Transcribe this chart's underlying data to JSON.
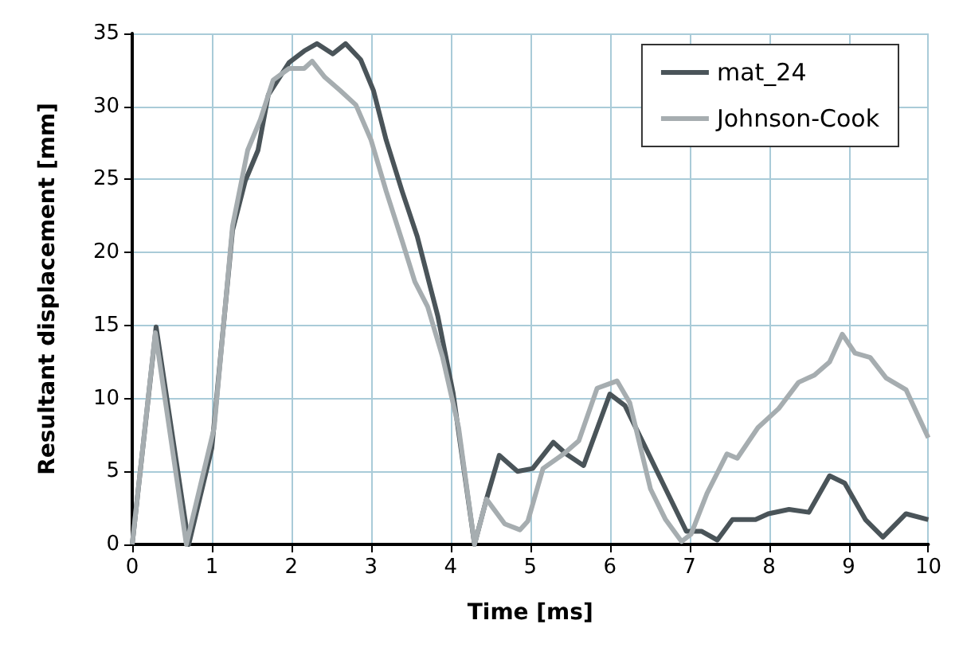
{
  "chart_data": {
    "type": "line",
    "xlabel": "Time [ms]",
    "ylabel": "Resultant displacement [mm]",
    "xlim": [
      0,
      10
    ],
    "xticks": [
      0,
      1,
      2,
      3,
      4,
      5,
      6,
      7,
      8,
      9,
      10
    ],
    "ylim": [
      0,
      35
    ],
    "yticks": [
      0,
      5,
      10,
      15,
      20,
      25,
      30,
      35
    ],
    "grid": true,
    "legend": "top right",
    "line_style": "solid",
    "series": [
      {
        "name": "mat_24",
        "color": "#4a5459",
        "x": [
          0,
          0.3,
          0.71,
          1.0,
          1.26,
          1.42,
          1.58,
          1.71,
          1.97,
          2.16,
          2.32,
          2.52,
          2.68,
          2.87,
          3.03,
          3.19,
          3.39,
          3.58,
          3.84,
          4.03,
          4.3,
          4.45,
          4.61,
          4.84,
          5.03,
          5.29,
          5.45,
          5.67,
          6.0,
          6.19,
          6.45,
          6.7,
          6.96,
          7.15,
          7.35,
          7.54,
          7.83,
          7.99,
          8.25,
          8.5,
          8.76,
          8.95,
          9.21,
          9.43,
          9.72,
          10
        ],
        "values": [
          0,
          14.9,
          0,
          6.6,
          21.5,
          24.9,
          27,
          30.8,
          33,
          33.8,
          34.3,
          33.6,
          34.3,
          33.2,
          31.1,
          27.7,
          24.2,
          21.1,
          15.6,
          10.4,
          0,
          3.1,
          6.1,
          5.0,
          5.2,
          7.0,
          6.2,
          5.4,
          10.3,
          9.5,
          6.6,
          3.8,
          0.9,
          0.9,
          0.3,
          1.7,
          1.7,
          2.1,
          2.4,
          2.2,
          4.7,
          4.2,
          1.7,
          0.5,
          2.1,
          1.7
        ]
      },
      {
        "name": "Johnson-Cook",
        "color": "#a6adb0",
        "x": [
          0,
          0.29,
          0.68,
          1.03,
          1.26,
          1.45,
          1.61,
          1.77,
          1.97,
          2.16,
          2.26,
          2.42,
          2.61,
          2.81,
          3.0,
          3.19,
          3.39,
          3.55,
          3.71,
          3.9,
          4.1,
          4.3,
          4.45,
          4.68,
          4.87,
          4.97,
          5.16,
          5.42,
          5.61,
          5.84,
          6.09,
          6.25,
          6.51,
          6.7,
          6.9,
          7.02,
          7.22,
          7.47,
          7.6,
          7.86,
          8.12,
          8.37,
          8.57,
          8.76,
          8.92,
          9.08,
          9.27,
          9.47,
          9.72,
          10
        ],
        "values": [
          0,
          14.5,
          0,
          8,
          21.8,
          27,
          29.1,
          31.8,
          32.6,
          32.6,
          33.1,
          32,
          31.1,
          30.1,
          27.7,
          24.2,
          20.8,
          18,
          16.3,
          12.8,
          8,
          0,
          3.1,
          1.4,
          1.0,
          1.6,
          5.2,
          6.2,
          7.1,
          10.7,
          11.2,
          9.7,
          3.8,
          1.7,
          0.2,
          0.7,
          3.5,
          6.2,
          5.9,
          8,
          9.3,
          11.1,
          11.6,
          12.5,
          14.4,
          13.1,
          12.8,
          11.4,
          10.6,
          7.3
        ]
      }
    ]
  }
}
